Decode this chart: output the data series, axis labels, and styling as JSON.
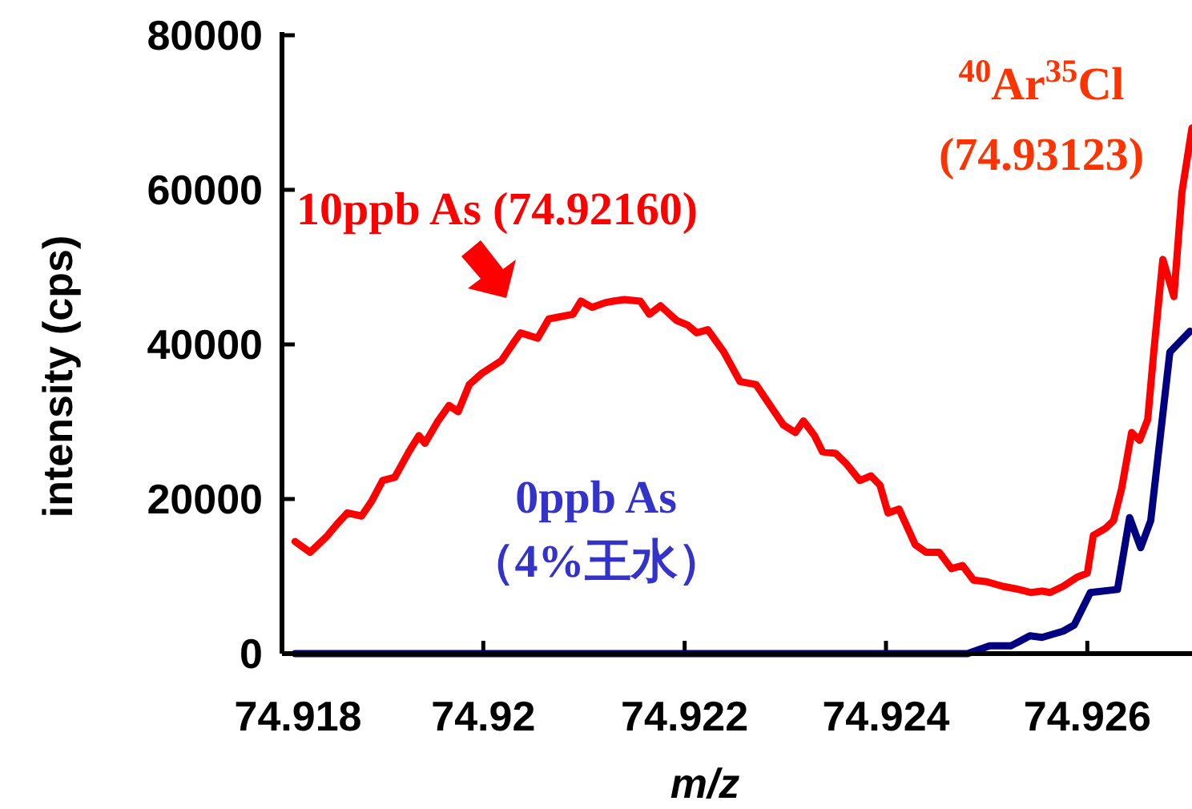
{
  "chart_data": {
    "type": "line",
    "xlabel": "m/z",
    "ylabel": "intensity (cps)",
    "xlim": [
      74.918,
      74.92704
    ],
    "ylim": [
      0,
      80000
    ],
    "xticks": [
      {
        "value": 74.918,
        "label": "74.918"
      },
      {
        "value": 74.92,
        "label": "74.92"
      },
      {
        "value": 74.922,
        "label": "74.922"
      },
      {
        "value": 74.924,
        "label": "74.924"
      },
      {
        "value": 74.926,
        "label": "74.926"
      }
    ],
    "yticks": [
      0,
      20000,
      40000,
      60000,
      80000
    ],
    "grid": false,
    "legend": false,
    "line_style": "solid",
    "marker": "none",
    "series": [
      {
        "name": "10ppb As (74.92160)",
        "color": "#ff0000",
        "x": [
          74.91813,
          74.91828,
          74.91844,
          74.91855,
          74.91865,
          74.91879,
          74.91889,
          74.919,
          74.91912,
          74.91926,
          74.91936,
          74.91942,
          74.91955,
          74.91966,
          74.91975,
          74.91986,
          74.91999,
          74.92018,
          74.92031,
          74.92037,
          74.92054,
          74.92065,
          74.92073,
          74.92089,
          74.92097,
          74.92108,
          74.92121,
          74.92129,
          74.9214,
          74.92156,
          74.92165,
          74.92176,
          74.92192,
          74.92203,
          74.92212,
          74.92223,
          74.92239,
          74.92255,
          74.92271,
          74.92287,
          74.92298,
          74.9231,
          74.92318,
          74.92329,
          74.92337,
          74.9235,
          74.92361,
          74.92374,
          74.92385,
          74.92394,
          74.92402,
          74.92413,
          74.92429,
          74.9244,
          74.92453,
          74.92465,
          74.92476,
          74.92487,
          74.925,
          74.92516,
          74.92532,
          74.92544,
          74.92555,
          74.92563,
          74.92576,
          74.9259,
          74.926,
          74.92606,
          74.92618,
          74.92626,
          74.92634,
          74.92644,
          74.92652,
          74.9266,
          74.92666,
          74.92675,
          74.92686,
          74.92694,
          74.92704
        ],
        "values": [
          14500,
          13100,
          15100,
          16800,
          18200,
          17800,
          19700,
          22400,
          22800,
          26100,
          28200,
          27200,
          30100,
          32100,
          31300,
          34800,
          36300,
          37900,
          40400,
          41500,
          40800,
          43300,
          43500,
          43900,
          45600,
          44800,
          45400,
          45600,
          45800,
          45600,
          43900,
          45000,
          43100,
          42500,
          41500,
          41900,
          39000,
          35200,
          34800,
          31700,
          29600,
          28600,
          30100,
          28200,
          26100,
          25900,
          24500,
          22400,
          23000,
          21800,
          18200,
          18700,
          14100,
          13100,
          13100,
          11000,
          11400,
          9500,
          9300,
          8700,
          8300,
          7900,
          8100,
          7900,
          8700,
          9900,
          10400,
          15300,
          16200,
          17200,
          21300,
          28600,
          27600,
          30300,
          39000,
          51000,
          46200,
          59700,
          68000
        ]
      },
      {
        "name": "0ppb As\n（4%王水）",
        "color": "#000080",
        "x": [
          74.91813,
          74.92481,
          74.92503,
          74.92524,
          74.92543,
          74.92555,
          74.92576,
          74.92587,
          74.92603,
          74.9263,
          74.92642,
          74.92653,
          74.92663,
          74.92682,
          74.92702
        ],
        "values": [
          0,
          0,
          1000,
          1000,
          2300,
          2100,
          2900,
          3700,
          7900,
          8300,
          17600,
          13700,
          17200,
          39000,
          41700
        ]
      }
    ],
    "annotations": [
      "$^{40}$Ar$^{35}$Cl\n(74.93123)"
    ]
  }
}
